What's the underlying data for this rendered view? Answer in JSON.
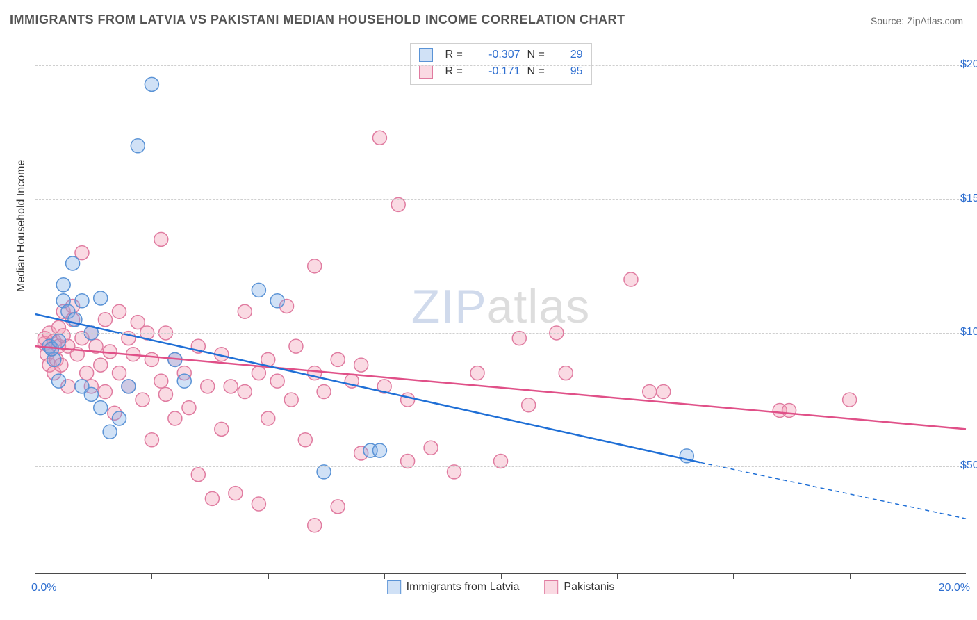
{
  "title": "IMMIGRANTS FROM LATVIA VS PAKISTANI MEDIAN HOUSEHOLD INCOME CORRELATION CHART",
  "source_label": "Source: ",
  "source_name": "ZipAtlas.com",
  "ylabel": "Median Household Income",
  "watermark": {
    "part1": "ZIP",
    "part2": "atlas"
  },
  "chart": {
    "type": "scatter",
    "background_color": "#ffffff",
    "grid_color": "#cfcfcf",
    "axis_color": "#4a4a4a",
    "text_color": "#333333",
    "value_color": "#2f6fd0",
    "xlim": [
      0.0,
      20.0
    ],
    "ylim": [
      10000,
      210000
    ],
    "x_unit": "%",
    "x_tick_step": 2.5,
    "y_ticks": [
      50000,
      100000,
      150000,
      200000
    ],
    "y_tick_labels": [
      "$50,000",
      "$100,000",
      "$150,000",
      "$200,000"
    ],
    "x_lim_labels": [
      "0.0%",
      "20.0%"
    ],
    "marker_radius": 10,
    "marker_stroke_width": 1.5,
    "trend_line_width": 2.5,
    "series": [
      {
        "name": "Immigrants from Latvia",
        "fill": "rgba(120,170,230,0.35)",
        "stroke": "#5a93d6",
        "trend_color": "#1f6fd6",
        "R": "-0.307",
        "N": "29",
        "trend": {
          "x1": 0.0,
          "y1": 107000,
          "x2": 14.3,
          "y2": 51500,
          "extend_x2": 20.0,
          "extend_y2": 30500
        },
        "points": [
          [
            0.3,
            95000
          ],
          [
            0.4,
            90000
          ],
          [
            0.35,
            94000
          ],
          [
            0.5,
            97000
          ],
          [
            0.5,
            82000
          ],
          [
            0.6,
            112000
          ],
          [
            0.6,
            118000
          ],
          [
            0.7,
            108000
          ],
          [
            0.8,
            126000
          ],
          [
            0.85,
            105000
          ],
          [
            1.0,
            112000
          ],
          [
            1.0,
            80000
          ],
          [
            1.2,
            77000
          ],
          [
            1.2,
            100000
          ],
          [
            1.4,
            72000
          ],
          [
            1.4,
            113000
          ],
          [
            1.6,
            63000
          ],
          [
            1.8,
            68000
          ],
          [
            2.0,
            80000
          ],
          [
            2.5,
            193000
          ],
          [
            2.2,
            170000
          ],
          [
            3.0,
            90000
          ],
          [
            3.2,
            82000
          ],
          [
            4.8,
            116000
          ],
          [
            5.2,
            112000
          ],
          [
            6.2,
            48000
          ],
          [
            7.2,
            56000
          ],
          [
            7.4,
            56000
          ],
          [
            14.0,
            54000
          ]
        ]
      },
      {
        "name": "Pakistanis",
        "fill": "rgba(240,150,175,0.35)",
        "stroke": "#e07ba0",
        "trend_color": "#e05088",
        "R": "-0.171",
        "N": "95",
        "trend": {
          "x1": 0.0,
          "y1": 95000,
          "x2": 20.0,
          "y2": 64000
        },
        "points": [
          [
            0.2,
            96000
          ],
          [
            0.2,
            98000
          ],
          [
            0.25,
            92000
          ],
          [
            0.3,
            100000
          ],
          [
            0.3,
            88000
          ],
          [
            0.35,
            94000
          ],
          [
            0.4,
            97000
          ],
          [
            0.4,
            85000
          ],
          [
            0.45,
            90000
          ],
          [
            0.5,
            95000
          ],
          [
            0.5,
            102000
          ],
          [
            0.55,
            88000
          ],
          [
            0.6,
            99000
          ],
          [
            0.6,
            108000
          ],
          [
            0.7,
            95000
          ],
          [
            0.7,
            80000
          ],
          [
            0.8,
            105000
          ],
          [
            0.8,
            110000
          ],
          [
            0.9,
            92000
          ],
          [
            1.0,
            98000
          ],
          [
            1.0,
            130000
          ],
          [
            1.1,
            85000
          ],
          [
            1.2,
            80000
          ],
          [
            1.2,
            100000
          ],
          [
            1.3,
            95000
          ],
          [
            1.4,
            88000
          ],
          [
            1.5,
            78000
          ],
          [
            1.5,
            105000
          ],
          [
            1.6,
            93000
          ],
          [
            1.7,
            70000
          ],
          [
            1.8,
            85000
          ],
          [
            1.8,
            108000
          ],
          [
            2.0,
            80000
          ],
          [
            2.0,
            98000
          ],
          [
            2.1,
            92000
          ],
          [
            2.2,
            104000
          ],
          [
            2.3,
            75000
          ],
          [
            2.4,
            100000
          ],
          [
            2.5,
            90000
          ],
          [
            2.5,
            60000
          ],
          [
            2.7,
            135000
          ],
          [
            2.7,
            82000
          ],
          [
            2.8,
            77000
          ],
          [
            2.8,
            100000
          ],
          [
            3.0,
            68000
          ],
          [
            3.0,
            90000
          ],
          [
            3.2,
            85000
          ],
          [
            3.3,
            72000
          ],
          [
            3.5,
            95000
          ],
          [
            3.5,
            47000
          ],
          [
            3.7,
            80000
          ],
          [
            3.8,
            38000
          ],
          [
            4.0,
            64000
          ],
          [
            4.0,
            92000
          ],
          [
            4.2,
            80000
          ],
          [
            4.3,
            40000
          ],
          [
            4.5,
            108000
          ],
          [
            4.5,
            78000
          ],
          [
            4.8,
            85000
          ],
          [
            4.8,
            36000
          ],
          [
            5.0,
            90000
          ],
          [
            5.0,
            68000
          ],
          [
            5.2,
            82000
          ],
          [
            5.4,
            110000
          ],
          [
            5.5,
            75000
          ],
          [
            5.6,
            95000
          ],
          [
            5.8,
            60000
          ],
          [
            6.0,
            125000
          ],
          [
            6.0,
            85000
          ],
          [
            6.0,
            28000
          ],
          [
            6.2,
            78000
          ],
          [
            6.5,
            90000
          ],
          [
            6.5,
            35000
          ],
          [
            6.8,
            82000
          ],
          [
            7.0,
            88000
          ],
          [
            7.0,
            55000
          ],
          [
            7.4,
            173000
          ],
          [
            7.5,
            80000
          ],
          [
            7.8,
            148000
          ],
          [
            8.0,
            75000
          ],
          [
            8.0,
            52000
          ],
          [
            8.5,
            57000
          ],
          [
            9.0,
            48000
          ],
          [
            9.5,
            85000
          ],
          [
            10.0,
            52000
          ],
          [
            10.4,
            98000
          ],
          [
            10.6,
            73000
          ],
          [
            11.2,
            100000
          ],
          [
            11.4,
            85000
          ],
          [
            12.8,
            120000
          ],
          [
            13.2,
            78000
          ],
          [
            13.5,
            78000
          ],
          [
            16.0,
            71000
          ],
          [
            16.2,
            71000
          ],
          [
            17.5,
            75000
          ]
        ]
      }
    ]
  }
}
